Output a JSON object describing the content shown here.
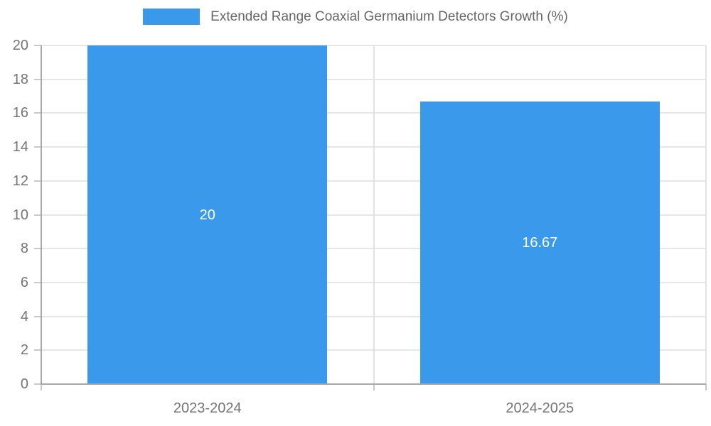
{
  "legend": {
    "label": "Extended Range Coaxial Germanium Detectors Growth (%)"
  },
  "chart_data": {
    "type": "bar",
    "title": "Extended Range Coaxial Germanium Detectors Growth (%)",
    "categories": [
      "2023-2024",
      "2024-2025"
    ],
    "values": [
      20,
      16.67
    ],
    "data_labels": [
      "20",
      "16.67"
    ],
    "xlabel": "",
    "ylabel": "",
    "ylim": [
      0,
      20
    ],
    "ytick_step": 2,
    "ytick_labels": [
      "0",
      "2",
      "4",
      "6",
      "8",
      "10",
      "12",
      "14",
      "16",
      "18",
      "20"
    ],
    "grid": true,
    "legend_position": "top",
    "bar_color": "#3b99ec",
    "data_label_color": "#ffffff",
    "grid_color": "#e6e6e6",
    "axis_line_color": "#a8a8a8",
    "tick_text_color": "#757575",
    "title_text_color": "#666666"
  }
}
